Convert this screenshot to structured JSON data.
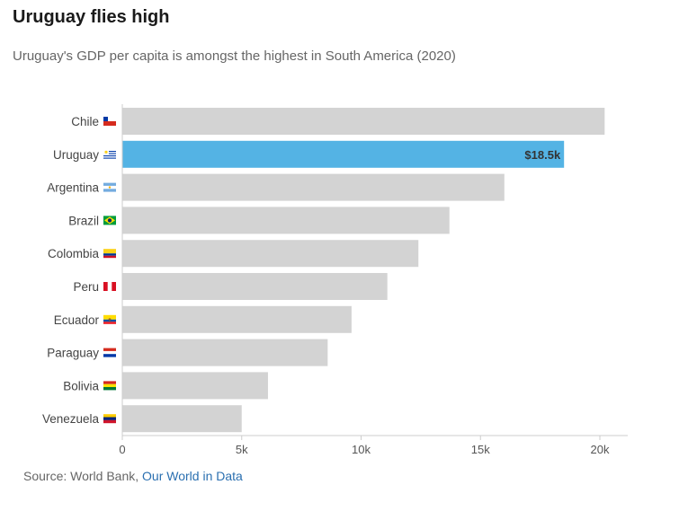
{
  "title": "Uruguay flies high",
  "subtitle": "Uruguay's GDP per capita is amongst the highest in South America (2020)",
  "source": {
    "prefix": "Source: World Bank, ",
    "link_text": "Our World in Data"
  },
  "colors": {
    "bar": "#d3d3d3",
    "highlight": "#54b3e4",
    "axis": "#cccccc",
    "source_link": "#2a6fb0"
  },
  "chart_data": {
    "type": "bar",
    "orientation": "horizontal",
    "categories": [
      "Chile",
      "Uruguay",
      "Argentina",
      "Brazil",
      "Colombia",
      "Peru",
      "Ecuador",
      "Paraguay",
      "Bolivia",
      "Venezuela"
    ],
    "flag_icons": [
      "chile-flag-icon",
      "uruguay-flag-icon",
      "argentina-flag-icon",
      "brazil-flag-icon",
      "colombia-flag-icon",
      "peru-flag-icon",
      "ecuador-flag-icon",
      "paraguay-flag-icon",
      "bolivia-flag-icon",
      "venezuela-flag-icon"
    ],
    "values": [
      20.2,
      18.5,
      16.0,
      13.7,
      12.4,
      11.1,
      9.6,
      8.6,
      6.1,
      5.0
    ],
    "highlight": "Uruguay",
    "data_labels": {
      "Uruguay": "$18.5k"
    },
    "xlim": [
      0,
      21
    ],
    "xticks": [
      0,
      5,
      10,
      15,
      20
    ],
    "xtick_labels": [
      "0",
      "5k",
      "10k",
      "15k",
      "20k"
    ],
    "xlabel": "",
    "ylabel": "",
    "grid": false,
    "legend": false
  }
}
